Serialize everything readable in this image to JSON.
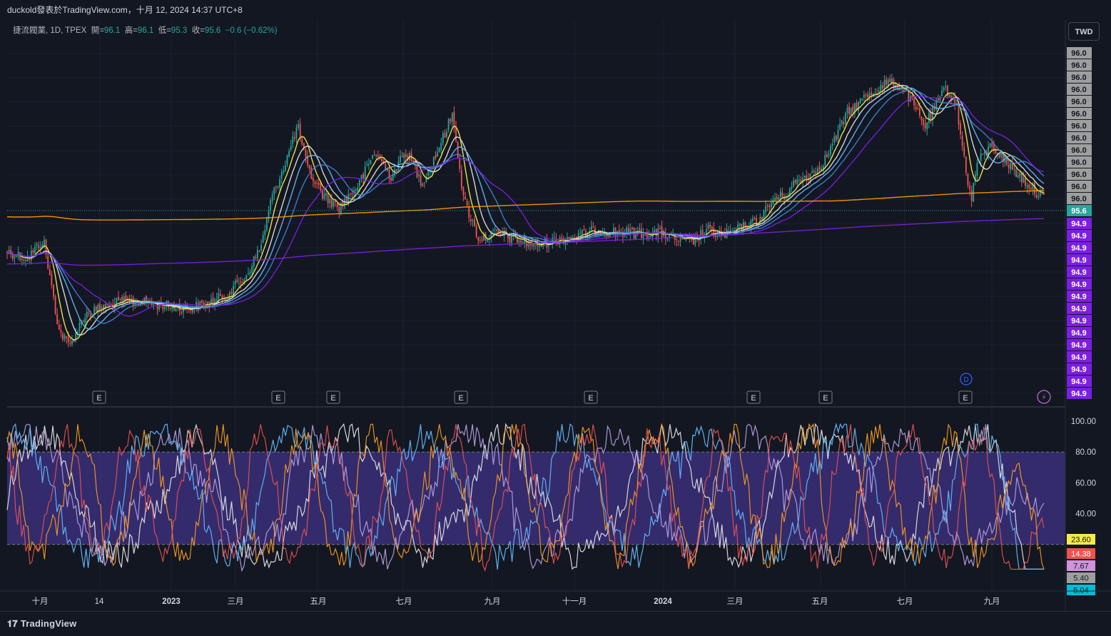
{
  "header": {
    "watermark": "duckold發表於TradingView.com，十月 12, 2024 14:37 UTC+8"
  },
  "legend": {
    "symbol": "捷流閥業, 1D, TPEX",
    "open_label": "開=",
    "open": "96.1",
    "high_label": "高=",
    "high": "96.1",
    "low_label": "低=",
    "low": "95.3",
    "close_label": "收=",
    "close": "95.6",
    "change": "−0.6 (−0.62%)"
  },
  "currency_button": "TWD",
  "footer": {
    "brand": "TradingView",
    "logo_icon": "tradingview-logo-icon"
  },
  "colors": {
    "background": "#131722",
    "up": "#26a69a",
    "down": "#ef5350",
    "ma_yellow": "#f5e94b",
    "ma_orange": "#ff9800",
    "ma_purple": "#7b1fe0",
    "stoch_band": "#3b2f7a",
    "stoch_orange": "#ff9f1c",
    "stoch_lavender": "#b39ddb",
    "stoch_blue": "#64b5f6",
    "stoch_white": "#e0e0e0",
    "stoch_red": "#ef5350"
  },
  "chart_data": [
    {
      "type": "candlestick",
      "x_axis_labels": [
        "十月",
        "14",
        "2023",
        "三月",
        "五月",
        "七月",
        "九月",
        "十一月",
        "2024",
        "三月",
        "五月",
        "七月",
        "九月"
      ],
      "price_axis_labels_upper": [
        "96.0",
        "96.0",
        "96.0",
        "96.0",
        "96.0",
        "96.0",
        "96.0",
        "96.0",
        "96.0",
        "96.0",
        "96.0",
        "96.0",
        "96.0"
      ],
      "price_axis_labels_lower": [
        "94.9",
        "94.9",
        "94.9",
        "94.9",
        "94.9",
        "94.9",
        "94.9",
        "94.9",
        "94.9",
        "94.9",
        "94.9",
        "94.9",
        "94.9",
        "94.9",
        "94.9"
      ],
      "last_price_label": "95.6",
      "earnings_markers": [
        "E",
        "E",
        "E",
        "E",
        "E",
        "E",
        "E",
        "E"
      ],
      "dividend_marker": "D",
      "price_path": [
        [
          0,
          0.62
        ],
        [
          0.02,
          0.64
        ],
        [
          0.035,
          0.58
        ],
        [
          0.05,
          0.87
        ],
        [
          0.06,
          0.92
        ],
        [
          0.075,
          0.82
        ],
        [
          0.09,
          0.8
        ],
        [
          0.11,
          0.78
        ],
        [
          0.13,
          0.78
        ],
        [
          0.15,
          0.79
        ],
        [
          0.17,
          0.8
        ],
        [
          0.19,
          0.79
        ],
        [
          0.21,
          0.76
        ],
        [
          0.23,
          0.7
        ],
        [
          0.245,
          0.6
        ],
        [
          0.255,
          0.45
        ],
        [
          0.27,
          0.32
        ],
        [
          0.28,
          0.22
        ],
        [
          0.29,
          0.36
        ],
        [
          0.305,
          0.44
        ],
        [
          0.32,
          0.48
        ],
        [
          0.34,
          0.4
        ],
        [
          0.355,
          0.3
        ],
        [
          0.37,
          0.38
        ],
        [
          0.385,
          0.3
        ],
        [
          0.4,
          0.4
        ],
        [
          0.415,
          0.3
        ],
        [
          0.43,
          0.18
        ],
        [
          0.44,
          0.45
        ],
        [
          0.455,
          0.58
        ],
        [
          0.47,
          0.56
        ],
        [
          0.49,
          0.58
        ],
        [
          0.51,
          0.6
        ],
        [
          0.53,
          0.58
        ],
        [
          0.55,
          0.57
        ],
        [
          0.57,
          0.55
        ],
        [
          0.59,
          0.56
        ],
        [
          0.61,
          0.56
        ],
        [
          0.63,
          0.56
        ],
        [
          0.645,
          0.58
        ],
        [
          0.66,
          0.59
        ],
        [
          0.675,
          0.55
        ],
        [
          0.69,
          0.57
        ],
        [
          0.71,
          0.54
        ],
        [
          0.725,
          0.52
        ],
        [
          0.74,
          0.45
        ],
        [
          0.75,
          0.44
        ],
        [
          0.76,
          0.4
        ],
        [
          0.78,
          0.36
        ],
        [
          0.79,
          0.32
        ],
        [
          0.8,
          0.25
        ],
        [
          0.81,
          0.18
        ],
        [
          0.82,
          0.15
        ],
        [
          0.83,
          0.12
        ],
        [
          0.85,
          0.08
        ],
        [
          0.865,
          0.1
        ],
        [
          0.875,
          0.16
        ],
        [
          0.885,
          0.22
        ],
        [
          0.895,
          0.16
        ],
        [
          0.905,
          0.1
        ],
        [
          0.915,
          0.14
        ],
        [
          0.92,
          0.26
        ],
        [
          0.93,
          0.46
        ],
        [
          0.935,
          0.34
        ],
        [
          0.95,
          0.28
        ],
        [
          0.965,
          0.34
        ],
        [
          0.98,
          0.39
        ],
        [
          1.0,
          0.45
        ]
      ],
      "moving_averages": [
        {
          "color": "#f5e94b",
          "lag": 6
        },
        {
          "color": "#e0e0e0",
          "lag": 12
        },
        {
          "color": "#64b5f6",
          "lag": 18
        },
        {
          "color": "#3f7fd4",
          "lag": 26
        },
        {
          "color": "#7b1fe0",
          "lag": 40
        },
        {
          "color": "#ff9800",
          "lag": 200
        },
        {
          "color": "#7b1fe0",
          "lag": 320
        }
      ]
    },
    {
      "type": "line",
      "indicator": "stochastic",
      "y_ticks": [
        "100.00",
        "80.00",
        "60.00",
        "40.00"
      ],
      "band": [
        20,
        80
      ],
      "value_labels": [
        {
          "value": "23.60",
          "bg": "#f5e94b",
          "fg": "#131722"
        },
        {
          "value": "14.38",
          "bg": "#ef5350",
          "fg": "#ffffff"
        },
        {
          "value": "7.67",
          "bg": "#ce93d8",
          "fg": "#131722"
        },
        {
          "value": "5.40",
          "bg": "#9e9e9e",
          "fg": "#131722"
        },
        {
          "value": "5.04",
          "bg": "#00bcd4",
          "fg": "#131722"
        }
      ]
    }
  ]
}
